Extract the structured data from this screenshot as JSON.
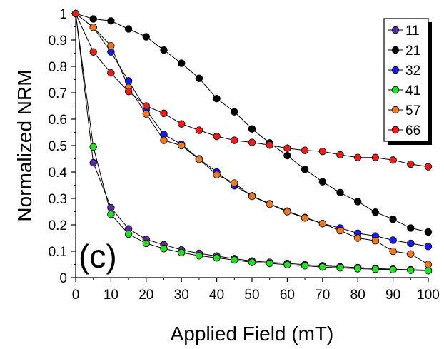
{
  "chart_data": {
    "type": "line",
    "xlabel": "Applied Field (mT)",
    "ylabel": "Normalized NRM",
    "panel_label": "(c)",
    "xlim": [
      0,
      100
    ],
    "ylim": [
      0,
      1
    ],
    "x_ticks": [
      0,
      10,
      20,
      30,
      40,
      50,
      60,
      70,
      80,
      90,
      100
    ],
    "y_ticks": [
      0,
      0.1,
      0.2,
      0.3,
      0.4,
      0.5,
      0.6,
      0.7,
      0.8,
      0.9,
      1
    ],
    "y_tick_labels": [
      "0",
      "0.1",
      "0.2",
      "0.3",
      "0.4",
      "0.5",
      "0.6",
      "0.7",
      "0.8",
      "0.9",
      "1"
    ],
    "grid": false,
    "legend_position": "top-right",
    "series": [
      {
        "name": "11",
        "color": "#5b2a9e",
        "x": [
          0,
          5,
          10,
          15,
          20,
          25,
          30,
          35,
          40,
          45,
          50,
          55,
          60,
          65,
          70,
          75,
          80,
          85,
          90,
          95,
          100
        ],
        "y": [
          1,
          0.435,
          0.265,
          0.185,
          0.145,
          0.125,
          0.105,
          0.092,
          0.082,
          0.072,
          0.063,
          0.058,
          0.054,
          0.049,
          0.045,
          0.041,
          0.038,
          0.035,
          0.032,
          0.03,
          0.028
        ]
      },
      {
        "name": "21",
        "color": "#000000",
        "x": [
          0,
          5,
          10,
          15,
          20,
          25,
          30,
          35,
          40,
          45,
          50,
          55,
          60,
          65,
          70,
          75,
          80,
          85,
          90,
          95,
          100
        ],
        "y": [
          1,
          0.98,
          0.972,
          0.942,
          0.912,
          0.862,
          0.812,
          0.755,
          0.678,
          0.628,
          0.563,
          0.51,
          0.462,
          0.41,
          0.363,
          0.322,
          0.288,
          0.248,
          0.221,
          0.188,
          0.173
        ]
      },
      {
        "name": "32",
        "color": "#1a1aee",
        "x": [
          0,
          5,
          10,
          15,
          20,
          25,
          30,
          35,
          40,
          45,
          50,
          55,
          60,
          65,
          70,
          75,
          80,
          85,
          90,
          95,
          100
        ],
        "y": [
          1,
          0.948,
          0.855,
          0.745,
          0.635,
          0.542,
          0.505,
          0.45,
          0.4,
          0.348,
          0.31,
          0.28,
          0.252,
          0.228,
          0.205,
          0.188,
          0.168,
          0.158,
          0.142,
          0.13,
          0.118
        ]
      },
      {
        "name": "41",
        "color": "#22e022",
        "x": [
          0,
          5,
          10,
          15,
          20,
          25,
          30,
          35,
          40,
          45,
          50,
          55,
          60,
          65,
          70,
          75,
          80,
          85,
          90,
          95,
          100
        ],
        "y": [
          1,
          0.495,
          0.24,
          0.165,
          0.13,
          0.11,
          0.095,
          0.083,
          0.075,
          0.067,
          0.058,
          0.054,
          0.049,
          0.045,
          0.04,
          0.037,
          0.034,
          0.032,
          0.03,
          0.028,
          0.026
        ]
      },
      {
        "name": "57",
        "color": "#f07820",
        "x": [
          0,
          5,
          10,
          15,
          20,
          25,
          30,
          35,
          40,
          45,
          50,
          55,
          60,
          65,
          70,
          75,
          80,
          85,
          90,
          95,
          100
        ],
        "y": [
          1,
          0.948,
          0.878,
          0.72,
          0.62,
          0.52,
          0.5,
          0.448,
          0.39,
          0.358,
          0.308,
          0.278,
          0.25,
          0.226,
          0.205,
          0.178,
          0.15,
          0.14,
          0.1,
          0.09,
          0.05
        ]
      },
      {
        "name": "66",
        "color": "#ee1c1c",
        "x": [
          0,
          5,
          10,
          15,
          20,
          25,
          30,
          35,
          40,
          45,
          50,
          55,
          60,
          65,
          70,
          75,
          80,
          85,
          90,
          95,
          100
        ],
        "y": [
          1,
          0.855,
          0.775,
          0.705,
          0.65,
          0.622,
          0.582,
          0.558,
          0.535,
          0.52,
          0.512,
          0.502,
          0.49,
          0.482,
          0.478,
          0.465,
          0.455,
          0.455,
          0.445,
          0.43,
          0.42
        ]
      }
    ]
  }
}
